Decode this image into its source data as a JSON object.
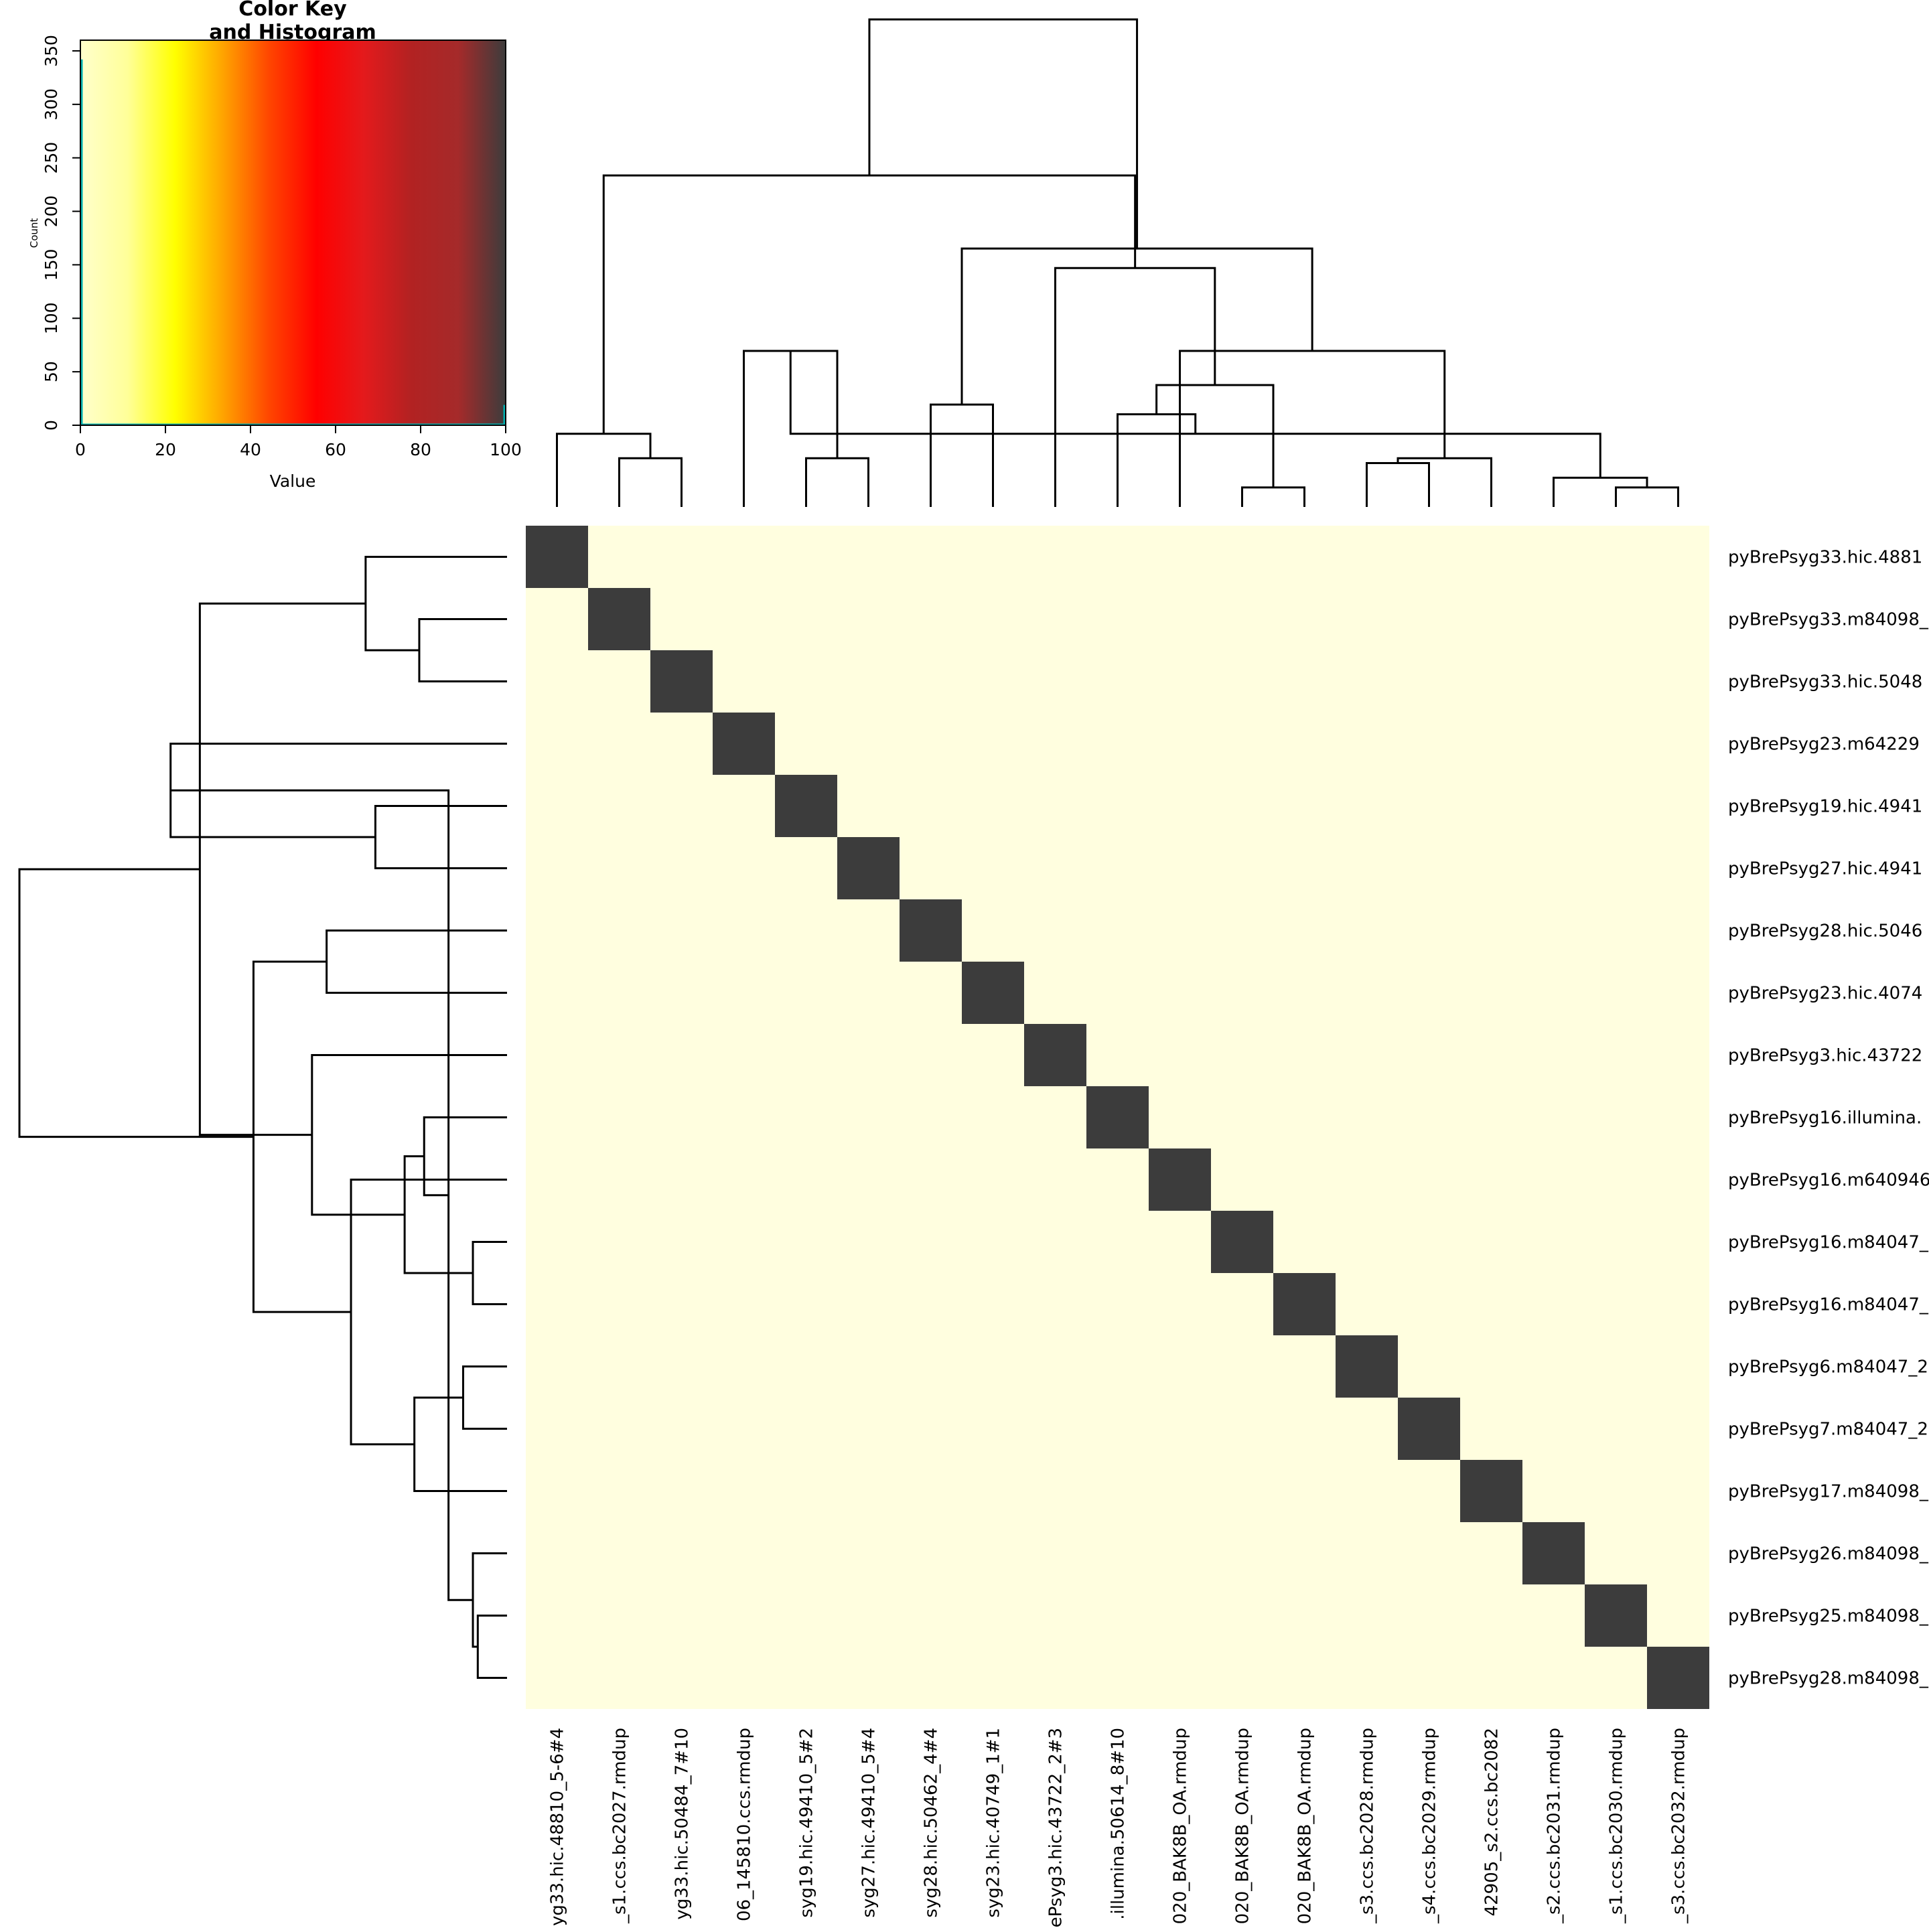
{
  "chart_data": {
    "type": "heatmap",
    "color_key": {
      "title_line1": "Color Key",
      "title_line2": "and Histogram",
      "xlabel": "Value",
      "ylabel": "Count",
      "xlim": [
        0,
        100
      ],
      "ylim": [
        0,
        360
      ],
      "x_ticks": [
        "0",
        "20",
        "40",
        "60",
        "80",
        "100"
      ],
      "y_ticks": [
        "0",
        "50",
        "100",
        "150",
        "200",
        "250",
        "300",
        "350"
      ],
      "histogram_color": "#00b0b0",
      "histogram_bins": [
        {
          "value": 0,
          "count": 342
        },
        {
          "value": 100,
          "count": 19
        }
      ],
      "colors": [
        "#ffffcc",
        "#ffff99",
        "#ffff00",
        "#ffa500",
        "#ff4500",
        "#ff0000",
        "#e41a1c",
        "#b22222",
        "#a52a2a",
        "#3c3c3c"
      ]
    },
    "row_labels": [
      "pyBrePsyg33.hic.4881",
      "pyBrePsyg33.m84098_",
      "pyBrePsyg33.hic.5048",
      "pyBrePsyg23.m64229",
      "pyBrePsyg19.hic.4941",
      "pyBrePsyg27.hic.4941",
      "pyBrePsyg28.hic.5046",
      "pyBrePsyg23.hic.4074",
      "pyBrePsyg3.hic.43722",
      "pyBrePsyg16.illumina.",
      "pyBrePsyg16.m640946",
      "pyBrePsyg16.m84047_",
      "pyBrePsyg16.m84047_",
      "pyBrePsyg6.m84047_2",
      "pyBrePsyg7.m84047_2",
      "pyBrePsyg17.m84098_",
      "pyBrePsyg26.m84098_",
      "pyBrePsyg25.m84098_",
      "pyBrePsyg28.m84098_"
    ],
    "col_labels": [
      "yg33.hic.48810_5-6#4",
      "_s1.ccs.bc2027.rmdup",
      "yg33.hic.50484_7#10",
      "06_145810.ccs.rmdup",
      "syg19.hic.49410_5#2",
      "syg27.hic.49410_5#4",
      "syg28.hic.50462_4#4",
      "syg23.hic.40749_1#1",
      "ePsyg3.hic.43722_2#3",
      ".illumina.50614_8#10",
      "020_BAK8B_OA.rmdup",
      "020_BAK8B_OA.rmdup",
      "020_BAK8B_OA.rmdup",
      "_s3.ccs.bc2028.rmdup",
      "_s4.ccs.bc2029.rmdup",
      "42905_s2.ccs.bc2082",
      "_s2.ccs.bc2031.rmdup",
      "_s1.ccs.bc2030.rmdup",
      "_s3.ccs.bc2032.rmdup"
    ],
    "diagonal_value": 100,
    "off_diagonal_value": 0,
    "cell_color_high": "#3c3c3c",
    "cell_color_low": "#fffedf",
    "row_dendrogram": [
      [
        1,
        2,
        0.18
      ],
      [
        0,
        19,
        0.29
      ],
      [
        4,
        5,
        0.27
      ],
      [
        6,
        7,
        0.37
      ],
      [
        21,
        3,
        0.69
      ],
      [
        17,
        18,
        0.06
      ],
      [
        16,
        24,
        0.07
      ],
      [
        23,
        25,
        0.12
      ],
      [
        9,
        26,
        0.17
      ],
      [
        13,
        14,
        0.09
      ],
      [
        11,
        12,
        0.07
      ],
      [
        15,
        28,
        0.19
      ],
      [
        27,
        29,
        0.21
      ],
      [
        10,
        30,
        0.32
      ],
      [
        8,
        31,
        0.4
      ],
      [
        22,
        32,
        0.52
      ],
      [
        20,
        33,
        0.63
      ],
      [
        34,
        35,
        1.0
      ]
    ],
    "col_dendrogram": [
      [
        1,
        2,
        0.1
      ],
      [
        0,
        19,
        0.15
      ],
      [
        4,
        5,
        0.1
      ],
      [
        6,
        7,
        0.21
      ],
      [
        21,
        3,
        0.32
      ],
      [
        17,
        18,
        0.04
      ],
      [
        16,
        24,
        0.06
      ],
      [
        23,
        25,
        0.15
      ],
      [
        9,
        26,
        0.19
      ],
      [
        13,
        14,
        0.09
      ],
      [
        11,
        12,
        0.04
      ],
      [
        15,
        28,
        0.1
      ],
      [
        27,
        29,
        0.25
      ],
      [
        10,
        30,
        0.32
      ],
      [
        8,
        31,
        0.49
      ],
      [
        22,
        32,
        0.53
      ],
      [
        20,
        33,
        0.68
      ],
      [
        34,
        35,
        1.0
      ]
    ]
  }
}
